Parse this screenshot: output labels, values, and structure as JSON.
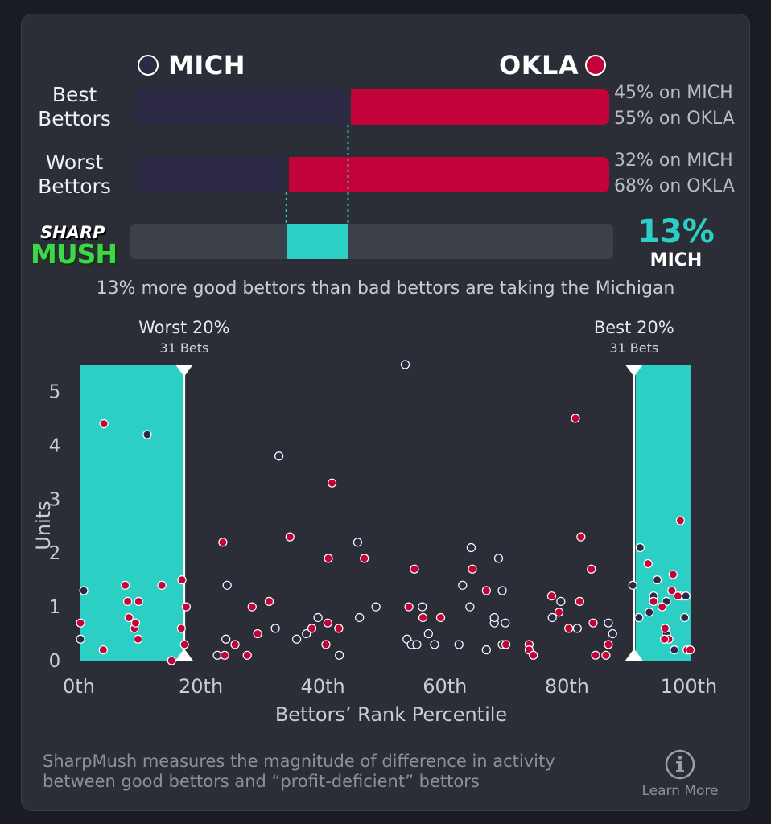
{
  "teams": {
    "left": {
      "abbr": "MICH",
      "color": "#2d2a45"
    },
    "right": {
      "abbr": "OKLA",
      "color": "#c4023a"
    }
  },
  "rows": [
    {
      "label_line1": "Best",
      "label_line2": "Bettors",
      "mich_pct": 45,
      "okla_pct": 55,
      "mich_text": "45% on MICH",
      "okla_text": "55% on OKLA"
    },
    {
      "label_line1": "Worst",
      "label_line2": "Bettors",
      "mich_pct": 32,
      "okla_pct": 68,
      "mich_text": "32% on MICH",
      "okla_text": "68% on OKLA"
    }
  ],
  "logo": {
    "top": "SHARP",
    "bottom": "MUSH"
  },
  "difference": {
    "value_text": "13%",
    "team": "MICH",
    "value": 13,
    "accent": "#2ccfc4"
  },
  "summary": "13% more good bettors than bad bettors are taking the Michigan",
  "chart_data": {
    "type": "scatter",
    "xlabel": "Bettors’ Rank Percentile",
    "ylabel": "Units",
    "xlim": [
      0,
      100
    ],
    "ylim": [
      0,
      5.5
    ],
    "x_ticks": [
      0,
      20,
      40,
      60,
      80,
      100
    ],
    "x_tick_labels": [
      "0th",
      "20th",
      "40th",
      "60th",
      "80th",
      "100th"
    ],
    "y_ticks": [
      0,
      1,
      2,
      3,
      4,
      5
    ],
    "y_tick_labels": [
      "0",
      "1",
      "2",
      "3",
      "4",
      "5"
    ],
    "regions": [
      {
        "label": "Worst 20%",
        "sublabel": "31 Bets",
        "x_range": [
          0,
          17
        ]
      },
      {
        "label": "Best 20%",
        "sublabel": "31 Bets",
        "x_range": [
          91,
          100
        ]
      }
    ],
    "series": [
      {
        "name": "MICH",
        "color": "#2d2a45",
        "points": [
          [
            0.2,
            0.4
          ],
          [
            0.8,
            1.3
          ],
          [
            11.2,
            4.2
          ],
          [
            22.7,
            0.1
          ],
          [
            24.3,
            1.4
          ],
          [
            24.1,
            0.4
          ],
          [
            32.8,
            3.8
          ],
          [
            32.2,
            0.6
          ],
          [
            35.7,
            0.4
          ],
          [
            37.3,
            0.5
          ],
          [
            39.2,
            0.8
          ],
          [
            42.7,
            0.1
          ],
          [
            45.7,
            2.2
          ],
          [
            46.0,
            0.8
          ],
          [
            48.7,
            1.0
          ],
          [
            53.5,
            5.5
          ],
          [
            53.8,
            0.4
          ],
          [
            54.5,
            0.3
          ],
          [
            55.4,
            0.3
          ],
          [
            56.3,
            1.0
          ],
          [
            57.3,
            0.5
          ],
          [
            58.3,
            0.3
          ],
          [
            62.3,
            0.3
          ],
          [
            62.9,
            1.4
          ],
          [
            64.3,
            2.1
          ],
          [
            64.1,
            1.0
          ],
          [
            66.8,
            0.2
          ],
          [
            68.1,
            0.7
          ],
          [
            68.1,
            0.8
          ],
          [
            68.8,
            1.9
          ],
          [
            69.4,
            1.3
          ],
          [
            69.9,
            0.7
          ],
          [
            69.4,
            0.3
          ],
          [
            77.6,
            0.8
          ],
          [
            79.0,
            1.1
          ],
          [
            81.7,
            0.6
          ],
          [
            86.8,
            0.7
          ],
          [
            87.5,
            0.5
          ],
          [
            90.8,
            1.4
          ],
          [
            92.0,
            2.1
          ],
          [
            91.8,
            0.8
          ],
          [
            93.5,
            0.9
          ],
          [
            94.2,
            1.2
          ],
          [
            94.8,
            1.5
          ],
          [
            95.6,
            1.0
          ],
          [
            96.3,
            1.1
          ],
          [
            96.3,
            0.5
          ],
          [
            97.6,
            0.2
          ],
          [
            98.7,
            1.2
          ],
          [
            99.3,
            0.8
          ],
          [
            99.5,
            1.2
          ]
        ]
      },
      {
        "name": "OKLA",
        "color": "#c4023a",
        "points": [
          [
            0.0,
            0.7
          ],
          [
            4.1,
            4.4
          ],
          [
            4.0,
            0.2
          ],
          [
            7.6,
            1.4
          ],
          [
            8.0,
            1.1
          ],
          [
            8.2,
            0.8
          ],
          [
            9.1,
            0.6
          ],
          [
            9.3,
            0.7
          ],
          [
            9.7,
            0.4
          ],
          [
            9.8,
            1.1
          ],
          [
            13.6,
            1.4
          ],
          [
            15.2,
            0.0
          ],
          [
            16.9,
            1.5
          ],
          [
            16.8,
            0.6
          ],
          [
            17.3,
            0.3
          ],
          [
            17.6,
            1.0
          ],
          [
            23.6,
            2.2
          ],
          [
            23.9,
            0.1
          ],
          [
            25.6,
            0.3
          ],
          [
            27.6,
            0.1
          ],
          [
            28.4,
            1.0
          ],
          [
            29.3,
            0.5
          ],
          [
            31.2,
            1.1
          ],
          [
            34.6,
            2.3
          ],
          [
            38.2,
            0.6
          ],
          [
            40.5,
            0.3
          ],
          [
            40.9,
            1.9
          ],
          [
            40.8,
            0.7
          ],
          [
            41.5,
            3.3
          ],
          [
            42.6,
            0.6
          ],
          [
            46.8,
            1.9
          ],
          [
            54.1,
            1.0
          ],
          [
            55.0,
            1.7
          ],
          [
            56.4,
            0.8
          ],
          [
            59.3,
            0.8
          ],
          [
            64.5,
            1.7
          ],
          [
            66.8,
            1.3
          ],
          [
            70.0,
            0.3
          ],
          [
            73.8,
            0.3
          ],
          [
            73.8,
            0.2
          ],
          [
            74.5,
            0.1
          ],
          [
            77.5,
            1.2
          ],
          [
            78.7,
            0.9
          ],
          [
            80.3,
            0.6
          ],
          [
            81.4,
            4.5
          ],
          [
            82.1,
            1.1
          ],
          [
            82.3,
            2.3
          ],
          [
            84.0,
            1.7
          ],
          [
            84.3,
            0.7
          ],
          [
            84.7,
            0.1
          ],
          [
            86.4,
            0.1
          ],
          [
            86.8,
            0.3
          ],
          [
            93.3,
            1.8
          ],
          [
            94.2,
            1.1
          ],
          [
            95.6,
            1.0
          ],
          [
            96.1,
            0.6
          ],
          [
            96.7,
            0.4
          ],
          [
            97.2,
            1.3
          ],
          [
            97.4,
            1.6
          ],
          [
            98.2,
            1.2
          ],
          [
            98.6,
            2.6
          ],
          [
            99.7,
            0.2
          ],
          [
            96.0,
            0.4
          ],
          [
            100.2,
            0.2
          ]
        ]
      }
    ]
  },
  "footer": {
    "line1": "SharpMush measures the magnitude of difference in activity",
    "line2": "between good bettors and “profit-deficient” bettors"
  },
  "learn_more": "Learn More"
}
